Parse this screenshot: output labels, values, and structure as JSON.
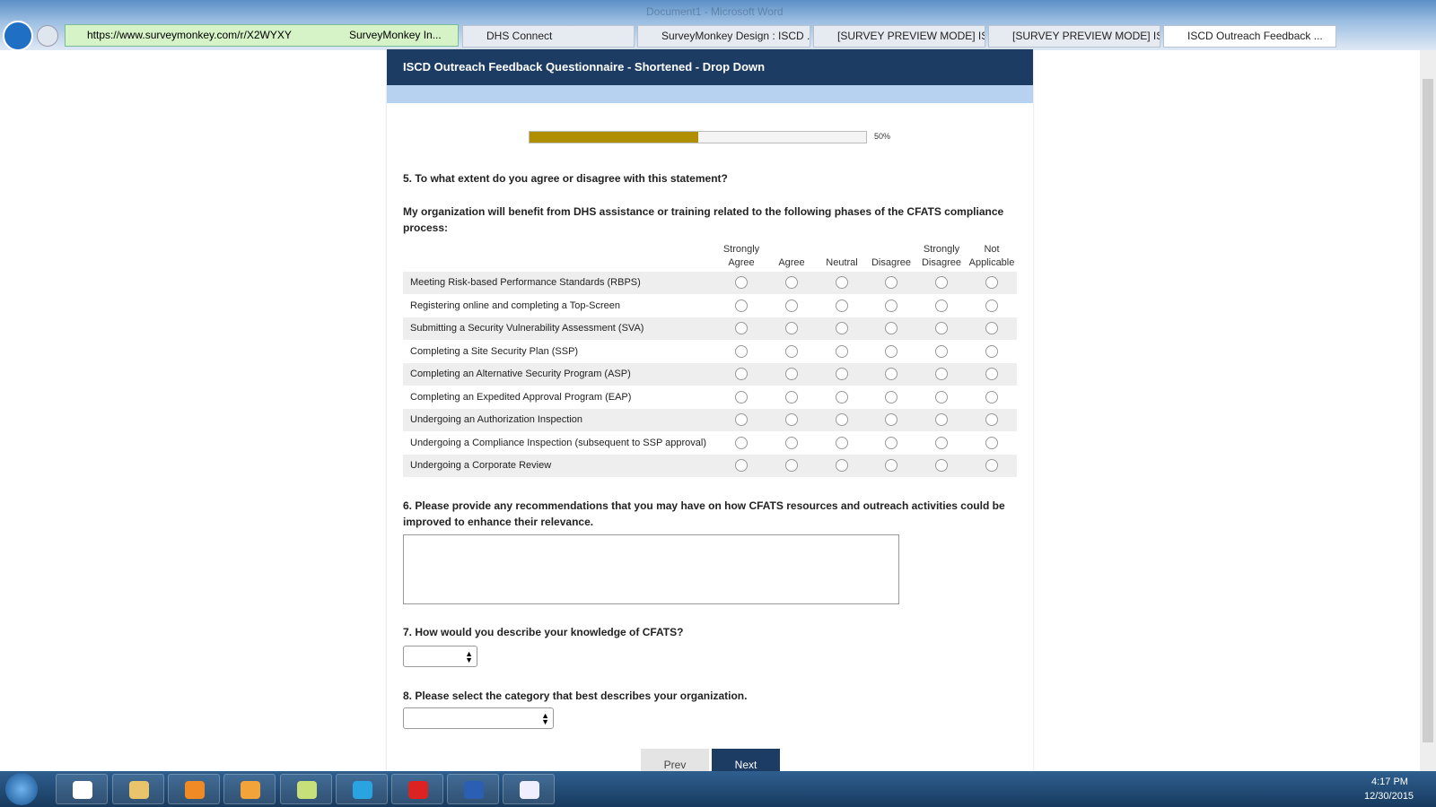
{
  "browser": {
    "window_title": "Document1 - Microsoft Word",
    "url": "https://www.surveymonkey.com/r/X2WYXY",
    "site_label": "SurveyMonkey In...",
    "tabs": [
      "DHS Connect",
      "SurveyMonkey Design : ISCD ...",
      "[SURVEY PREVIEW MODE] ISC...",
      "[SURVEY PREVIEW MODE] ISC...",
      "ISCD Outreach Feedback ..."
    ]
  },
  "survey": {
    "title": "ISCD Outreach Feedback Questionnaire - Shortened - Drop Down",
    "progress": {
      "value": 50,
      "label": "50%"
    },
    "q5": {
      "question": "5. To what extent do you agree or disagree with this statement?",
      "statement": "My organization will benefit from DHS assistance or training related to the following phases of the CFATS compliance process:",
      "columns": [
        [
          "Strongly",
          "Agree"
        ],
        [
          "Agree"
        ],
        [
          "Neutral"
        ],
        [
          "Disagree"
        ],
        [
          "Strongly",
          "Disagree"
        ],
        [
          "Not",
          "Applicable"
        ]
      ],
      "rows": [
        "Meeting Risk-based Performance Standards (RBPS)",
        "Registering online and completing a Top-Screen",
        "Submitting a Security Vulnerability Assessment (SVA)",
        "Completing a Site Security Plan (SSP)",
        "Completing an Alternative Security Program (ASP)",
        "Completing an Expedited Approval Program (EAP)",
        "Undergoing an Authorization Inspection",
        "Undergoing a Compliance Inspection (subsequent to SSP approval)",
        "Undergoing a Corporate Review"
      ]
    },
    "q6": {
      "question": "6. Please provide any recommendations that you may have on how CFATS resources and outreach activities could be improved to enhance their relevance."
    },
    "q7": {
      "question": "7. How would you describe your knowledge of CFATS?"
    },
    "q8": {
      "question": "8. Please select the category that best describes your organization."
    },
    "buttons": [
      "Prev",
      "Next"
    ]
  },
  "taskbar": {
    "time": "4:17 PM",
    "date": "12/30/2015"
  }
}
